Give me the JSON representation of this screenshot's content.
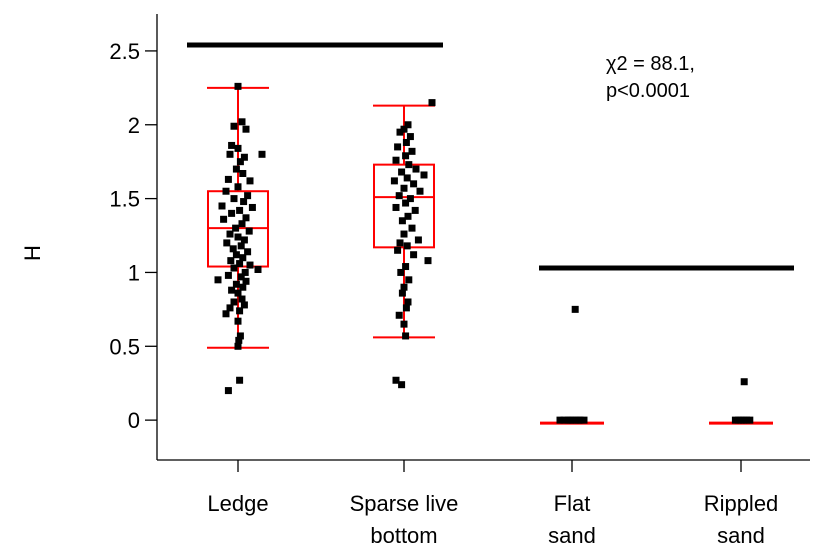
{
  "chart_data": {
    "type": "box-scatter",
    "ylabel": "H",
    "ylim": [
      -0.27,
      2.75
    ],
    "yticks": [
      {
        "value": 2.5,
        "label": "2.5"
      },
      {
        "value": 2.0,
        "label": "2"
      },
      {
        "value": 1.5,
        "label": "1.5"
      },
      {
        "value": 1.0,
        "label": "1"
      },
      {
        "value": 0.5,
        "label": "0.5"
      },
      {
        "value": 0.0,
        "label": "0"
      }
    ],
    "categories": [
      {
        "lines": [
          "Ledge"
        ]
      },
      {
        "lines": [
          "Sparse live",
          "bottom"
        ]
      },
      {
        "lines": [
          "Flat",
          "sand"
        ]
      },
      {
        "lines": [
          "Rippled",
          "sand"
        ]
      }
    ],
    "boxes": [
      {
        "whisker_low": 0.49,
        "q1": 1.04,
        "median": 1.3,
        "q3": 1.55,
        "whisker_high": 2.25
      },
      {
        "whisker_low": 0.56,
        "q1": 1.17,
        "median": 1.51,
        "q3": 1.73,
        "whisker_high": 2.13
      },
      {
        "whisker_low": -0.02,
        "q1": -0.02,
        "median": -0.02,
        "q3": -0.02,
        "whisker_high": -0.02
      },
      {
        "whisker_low": -0.02,
        "q1": -0.02,
        "median": -0.02,
        "q3": -0.02,
        "whisker_high": -0.02
      }
    ],
    "points": [
      [
        [
          0.0,
          2.26
        ],
        [
          0.05,
          2.02
        ],
        [
          0.1,
          1.97
        ],
        [
          -0.05,
          1.99
        ],
        [
          0.3,
          1.8
        ],
        [
          -0.08,
          1.86
        ],
        [
          0.0,
          1.84
        ],
        [
          -0.1,
          1.8
        ],
        [
          0.08,
          1.78
        ],
        [
          0.03,
          1.75
        ],
        [
          -0.02,
          1.7
        ],
        [
          0.06,
          1.67
        ],
        [
          -0.12,
          1.63
        ],
        [
          0.15,
          1.62
        ],
        [
          0.0,
          1.58
        ],
        [
          -0.15,
          1.55
        ],
        [
          0.12,
          1.52
        ],
        [
          -0.05,
          1.5
        ],
        [
          0.07,
          1.48
        ],
        [
          -0.2,
          1.45
        ],
        [
          0.18,
          1.44
        ],
        [
          0.02,
          1.42
        ],
        [
          -0.08,
          1.4
        ],
        [
          0.1,
          1.37
        ],
        [
          -0.18,
          1.36
        ],
        [
          0.05,
          1.33
        ],
        [
          -0.03,
          1.3
        ],
        [
          0.14,
          1.28
        ],
        [
          -0.1,
          1.26
        ],
        [
          0.0,
          1.24
        ],
        [
          0.08,
          1.22
        ],
        [
          -0.14,
          1.2
        ],
        [
          0.04,
          1.18
        ],
        [
          -0.06,
          1.16
        ],
        [
          0.12,
          1.14
        ],
        [
          -0.02,
          1.12
        ],
        [
          0.06,
          1.1
        ],
        [
          -0.09,
          1.08
        ],
        [
          0.02,
          1.06
        ],
        [
          0.15,
          1.05
        ],
        [
          -0.05,
          1.03
        ],
        [
          0.25,
          1.02
        ],
        [
          0.09,
          1.0
        ],
        [
          -0.12,
          0.98
        ],
        [
          0.04,
          0.97
        ],
        [
          -0.25,
          0.95
        ],
        [
          0.1,
          0.94
        ],
        [
          -0.02,
          0.92
        ],
        [
          0.06,
          0.9
        ],
        [
          -0.08,
          0.88
        ],
        [
          0.0,
          0.86
        ],
        [
          0.05,
          0.82
        ],
        [
          -0.05,
          0.8
        ],
        [
          0.08,
          0.78
        ],
        [
          -0.1,
          0.76
        ],
        [
          0.02,
          0.74
        ],
        [
          -0.15,
          0.72
        ],
        [
          0.0,
          0.67
        ],
        [
          0.03,
          0.57
        ],
        [
          0.01,
          0.54
        ],
        [
          0.0,
          0.5
        ],
        [
          0.02,
          0.27
        ],
        [
          -0.12,
          0.2
        ]
      ],
      [
        [
          0.35,
          2.15
        ],
        [
          0.05,
          2.0
        ],
        [
          0.0,
          1.97
        ],
        [
          -0.05,
          1.95
        ],
        [
          0.08,
          1.92
        ],
        [
          0.03,
          1.88
        ],
        [
          -0.08,
          1.85
        ],
        [
          0.1,
          1.82
        ],
        [
          0.02,
          1.79
        ],
        [
          -0.1,
          1.76
        ],
        [
          0.06,
          1.73
        ],
        [
          0.15,
          1.7
        ],
        [
          -0.03,
          1.68
        ],
        [
          0.25,
          1.66
        ],
        [
          0.04,
          1.64
        ],
        [
          -0.12,
          1.62
        ],
        [
          0.12,
          1.6
        ],
        [
          0.0,
          1.57
        ],
        [
          0.2,
          1.55
        ],
        [
          -0.06,
          1.52
        ],
        [
          0.08,
          1.5
        ],
        [
          0.02,
          1.47
        ],
        [
          -0.1,
          1.44
        ],
        [
          0.14,
          1.42
        ],
        [
          0.05,
          1.38
        ],
        [
          -0.02,
          1.35
        ],
        [
          0.1,
          1.3
        ],
        [
          0.0,
          1.26
        ],
        [
          0.18,
          1.22
        ],
        [
          -0.05,
          1.2
        ],
        [
          0.04,
          1.18
        ],
        [
          -0.08,
          1.15
        ],
        [
          0.12,
          1.12
        ],
        [
          0.3,
          1.08
        ],
        [
          0.02,
          1.04
        ],
        [
          -0.04,
          1.0
        ],
        [
          0.06,
          0.95
        ],
        [
          0.0,
          0.9
        ],
        [
          -0.02,
          0.86
        ],
        [
          0.05,
          0.8
        ],
        [
          0.03,
          0.76
        ],
        [
          -0.06,
          0.71
        ],
        [
          0.0,
          0.65
        ],
        [
          0.02,
          0.57
        ],
        [
          -0.1,
          0.27
        ],
        [
          -0.03,
          0.24
        ]
      ],
      [
        [
          0.04,
          0.75
        ],
        [
          -0.1,
          0.0
        ],
        [
          -0.05,
          0.0
        ],
        [
          0.0,
          0.0
        ],
        [
          0.05,
          0.0
        ],
        [
          0.1,
          0.0
        ],
        [
          0.15,
          0.0
        ],
        [
          -0.15,
          0.0
        ],
        [
          0.08,
          0.0
        ],
        [
          -0.02,
          0.0
        ]
      ],
      [
        [
          0.04,
          0.26
        ],
        [
          -0.07,
          0.0
        ],
        [
          -0.03,
          0.0
        ],
        [
          0.0,
          0.0
        ],
        [
          0.03,
          0.0
        ],
        [
          0.07,
          0.0
        ],
        [
          0.11,
          0.0
        ]
      ]
    ],
    "significance_bars": [
      {
        "from": 0,
        "to": 1,
        "value": 2.54
      },
      {
        "from": 2,
        "to": 3,
        "value": 1.03
      }
    ],
    "annotation": {
      "line1": "χ2 = 88.1,",
      "line2": "p<0.0001"
    },
    "colors": {
      "box": "#ff0000",
      "point": "#000000",
      "bar": "#000000",
      "axis": "#000000"
    }
  }
}
